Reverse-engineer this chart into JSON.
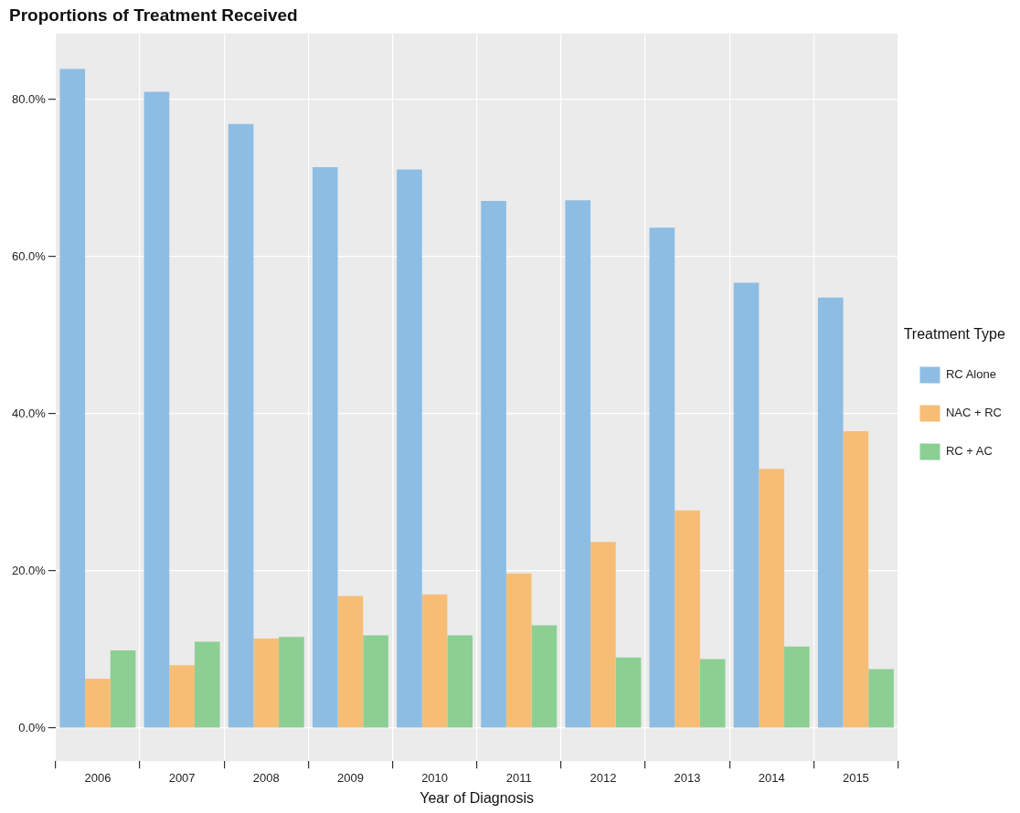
{
  "chart_data": {
    "type": "bar",
    "title": "Proportions of Treatment Received",
    "xlabel": "Year of Diagnosis",
    "legend_title": "Treatment Type",
    "legend": "right",
    "grid": true,
    "categories": [
      "2006",
      "2007",
      "2008",
      "2009",
      "2010",
      "2011",
      "2012",
      "2013",
      "2014",
      "2015"
    ],
    "series": [
      {
        "name": "RC Alone",
        "color": "#8dbde3",
        "values": [
          83.9,
          81.0,
          76.9,
          71.4,
          71.1,
          67.1,
          67.2,
          63.7,
          56.7,
          54.8
        ]
      },
      {
        "name": "NAC + RC",
        "color": "#f7bd75",
        "values": [
          6.3,
          8.0,
          11.4,
          16.8,
          17.0,
          19.7,
          23.7,
          27.7,
          33.0,
          37.8
        ]
      },
      {
        "name": "RC + AC",
        "color": "#8ccf93",
        "values": [
          9.9,
          11.0,
          11.6,
          11.8,
          11.8,
          13.1,
          9.0,
          8.8,
          10.4,
          7.5
        ]
      }
    ],
    "ylim": [
      -4.2,
      88.4
    ],
    "yticks": [
      {
        "value": 0,
        "label": "0.0%"
      },
      {
        "value": 20,
        "label": "20.0%"
      },
      {
        "value": 40,
        "label": "40.0%"
      },
      {
        "value": 60,
        "label": "60.0%"
      },
      {
        "value": 80,
        "label": "80.0%"
      }
    ]
  }
}
